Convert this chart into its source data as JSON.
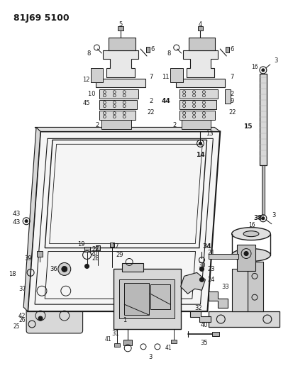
{
  "title": "81J69 5100",
  "bg_color": "#ffffff",
  "lc": "#1a1a1a",
  "fig_w": 4.13,
  "fig_h": 5.33,
  "dpi": 100
}
